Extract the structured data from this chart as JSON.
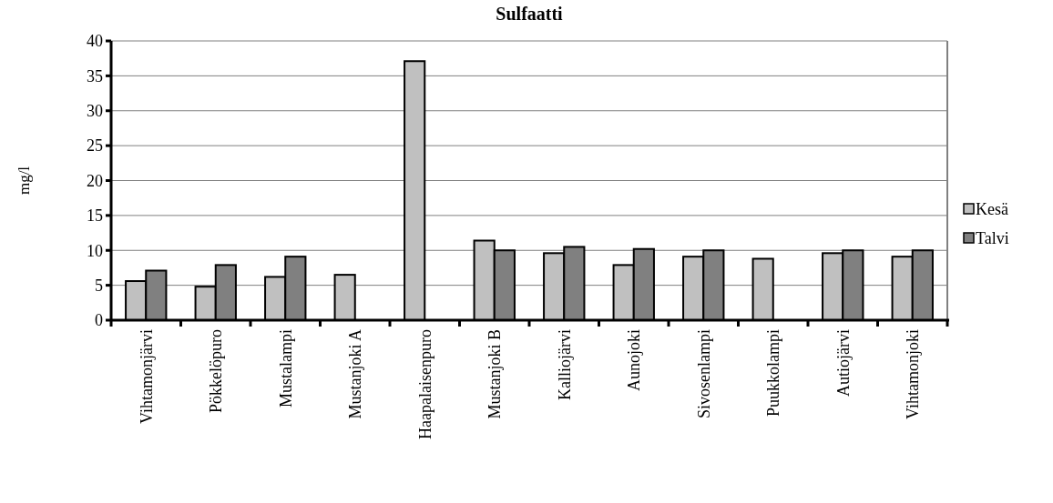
{
  "chart_data": {
    "type": "bar",
    "title": "Sulfaatti",
    "ylabel": "mg/l",
    "categories": [
      "Vihtamonjärvi",
      "Pökkelöpuro",
      "Mustalampi",
      "Mustanjoki A",
      "Haapalaisenpuro",
      "Mustanjoki B",
      "Kalliojärvi",
      "Aunojoki",
      "Sivosenlampi",
      "Puukkolampi",
      "Autiojärvi",
      "Vihtamonjoki"
    ],
    "series": [
      {
        "name": "Kesä",
        "color": "#c0c0c0",
        "values": [
          5.6,
          4.8,
          6.2,
          6.5,
          37.1,
          11.4,
          9.6,
          7.9,
          9.1,
          8.8,
          9.6,
          9.1
        ]
      },
      {
        "name": "Talvi",
        "color": "#808080",
        "values": [
          7.1,
          7.9,
          9.1,
          null,
          null,
          10.0,
          10.5,
          10.2,
          10.0,
          null,
          10.0,
          10.0
        ]
      }
    ],
    "ylim": [
      0,
      40
    ],
    "yticks": [
      0,
      5,
      10,
      15,
      20,
      25,
      30,
      35,
      40
    ],
    "grid": "y",
    "legend": "right"
  }
}
